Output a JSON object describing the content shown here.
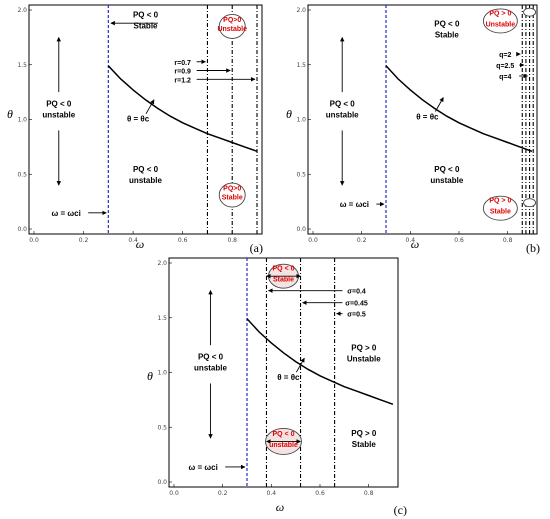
{
  "chart_data": [
    {
      "id": "a",
      "type": "line",
      "panel_label": "(a)",
      "xlabel": "ω",
      "ylabel": "θ",
      "xlim": [
        0,
        0.9
      ],
      "ylim": [
        0,
        2.0
      ],
      "xticks": [
        0.0,
        0.2,
        0.4,
        0.6,
        0.8
      ],
      "yticks": [
        0.0,
        0.5,
        1.0,
        1.5,
        2.0
      ],
      "tick_labels_x": [
        "0.0",
        "0.2",
        "0.4",
        "0.6",
        "0.8"
      ],
      "tick_labels_y": [
        "0.0",
        "0.5",
        "1.0",
        "1.5",
        "2.0"
      ],
      "blue_line_x": 0.3,
      "vlines": [
        0.7,
        0.8,
        0.9
      ],
      "curve": {
        "x": [
          0.3,
          0.35,
          0.4,
          0.45,
          0.5,
          0.55,
          0.6,
          0.65,
          0.7,
          0.75,
          0.8,
          0.85,
          0.9
        ],
        "y": [
          1.49,
          1.37,
          1.27,
          1.18,
          1.1,
          1.03,
          0.97,
          0.92,
          0.87,
          0.83,
          0.79,
          0.75,
          0.71
        ]
      },
      "labels": [
        {
          "text": "PQ < 0",
          "x": 0.45,
          "y": 1.93,
          "kind": "bold"
        },
        {
          "text": "Stable",
          "x": 0.45,
          "y": 1.83,
          "kind": "bold"
        },
        {
          "text": "PQ < 0",
          "x": 0.1,
          "y": 1.12,
          "kind": "bold"
        },
        {
          "text": "unstable",
          "x": 0.1,
          "y": 1.02,
          "kind": "bold"
        },
        {
          "text": "PQ < 0",
          "x": 0.45,
          "y": 0.52,
          "kind": "bold"
        },
        {
          "text": "unstable",
          "x": 0.45,
          "y": 0.42,
          "kind": "bold"
        },
        {
          "text": "θ = θc",
          "x": 0.42,
          "y": 0.98,
          "kind": "bold"
        },
        {
          "text": "ω = ωci",
          "x": 0.13,
          "y": 0.12,
          "kind": "bold"
        },
        {
          "text": "r=0.7",
          "x": 0.6,
          "y": 1.5,
          "kind": "bold"
        },
        {
          "text": "r=0.9",
          "x": 0.6,
          "y": 1.42,
          "kind": "bold"
        },
        {
          "text": "r=1.2",
          "x": 0.6,
          "y": 1.34,
          "kind": "bold"
        },
        {
          "text": "PQ>0",
          "x": 0.8,
          "y": 1.89,
          "kind": "red"
        },
        {
          "text": "Unstable",
          "x": 0.8,
          "y": 1.81,
          "kind": "red"
        },
        {
          "text": "PQ>0",
          "x": 0.8,
          "y": 0.35,
          "kind": "red"
        },
        {
          "text": "Stable",
          "x": 0.8,
          "y": 0.27,
          "kind": "red"
        }
      ]
    },
    {
      "id": "b",
      "type": "line",
      "panel_label": "(b)",
      "xlabel": "ω",
      "ylabel": "θ",
      "xlim": [
        0,
        0.9
      ],
      "ylim": [
        0,
        2.0
      ],
      "xticks": [
        0.0,
        0.2,
        0.4,
        0.6,
        0.8
      ],
      "yticks": [
        0.0,
        0.5,
        1.0,
        1.5,
        2.0
      ],
      "tick_labels_x": [
        "0.0",
        "0.2",
        "0.4",
        "0.6",
        "0.8"
      ],
      "tick_labels_y": [
        "0.0",
        "0.5",
        "1.0",
        "1.5",
        "2.0"
      ],
      "blue_line_x": 0.3,
      "vlines": [
        0.86,
        0.875,
        0.89,
        0.905
      ],
      "curve": {
        "x": [
          0.3,
          0.35,
          0.4,
          0.45,
          0.5,
          0.55,
          0.6,
          0.65,
          0.7,
          0.75,
          0.8,
          0.85,
          0.9
        ],
        "y": [
          1.49,
          1.37,
          1.27,
          1.18,
          1.1,
          1.03,
          0.97,
          0.92,
          0.87,
          0.83,
          0.79,
          0.75,
          0.71
        ]
      },
      "labels": [
        {
          "text": "PQ < 0",
          "x": 0.55,
          "y": 1.85,
          "kind": "bold"
        },
        {
          "text": "Stable",
          "x": 0.55,
          "y": 1.75,
          "kind": "bold"
        },
        {
          "text": "PQ < 0",
          "x": 0.12,
          "y": 1.12,
          "kind": "bold"
        },
        {
          "text": "unstable",
          "x": 0.12,
          "y": 1.02,
          "kind": "bold"
        },
        {
          "text": "PQ < 0",
          "x": 0.55,
          "y": 0.52,
          "kind": "bold"
        },
        {
          "text": "unstable",
          "x": 0.55,
          "y": 0.42,
          "kind": "bold"
        },
        {
          "text": "θ = θc",
          "x": 0.47,
          "y": 1.0,
          "kind": "bold"
        },
        {
          "text": "ω = ωci",
          "x": 0.17,
          "y": 0.2,
          "kind": "bold"
        },
        {
          "text": "q=2",
          "x": 0.79,
          "y": 1.57,
          "kind": "bold"
        },
        {
          "text": "q=2.5",
          "x": 0.79,
          "y": 1.47,
          "kind": "bold"
        },
        {
          "text": "q=4",
          "x": 0.79,
          "y": 1.37,
          "kind": "bold"
        },
        {
          "text": "PQ > 0",
          "x": 0.77,
          "y": 1.95,
          "kind": "red"
        },
        {
          "text": "Unstable",
          "x": 0.77,
          "y": 1.85,
          "kind": "red"
        },
        {
          "text": "PQ > 0",
          "x": 0.77,
          "y": 0.24,
          "kind": "red"
        },
        {
          "text": "Stable",
          "x": 0.77,
          "y": 0.14,
          "kind": "red"
        }
      ]
    },
    {
      "id": "c",
      "type": "line",
      "panel_label": "(c)",
      "xlabel": "ω",
      "ylabel": "θ",
      "xlim": [
        0,
        0.9
      ],
      "ylim": [
        0,
        2.0
      ],
      "xticks": [
        0.0,
        0.2,
        0.4,
        0.6,
        0.8
      ],
      "yticks": [
        0.0,
        0.5,
        1.0,
        1.5,
        2.0
      ],
      "tick_labels_x": [
        "0.0",
        "0.2",
        "0.4",
        "0.6",
        "0.8"
      ],
      "tick_labels_y": [
        "0.0",
        "0.5",
        "1.0",
        "1.5",
        "2.0"
      ],
      "blue_line_x": 0.3,
      "vlines": [
        0.38,
        0.52,
        0.66
      ],
      "curve": {
        "x": [
          0.3,
          0.35,
          0.4,
          0.45,
          0.5,
          0.55,
          0.6,
          0.65,
          0.7,
          0.75,
          0.8,
          0.85,
          0.9
        ],
        "y": [
          1.49,
          1.37,
          1.27,
          1.18,
          1.1,
          1.03,
          0.97,
          0.92,
          0.87,
          0.83,
          0.79,
          0.75,
          0.71
        ]
      },
      "labels": [
        {
          "text": "PQ < 0",
          "x": 0.45,
          "y": 1.93,
          "kind": "red-dark"
        },
        {
          "text": "Stable",
          "x": 0.45,
          "y": 1.83,
          "kind": "red-dark"
        },
        {
          "text": "PQ < 0",
          "x": 0.45,
          "y": 0.42,
          "kind": "red-dark"
        },
        {
          "text": "unstable",
          "x": 0.45,
          "y": 0.32,
          "kind": "red-dark"
        },
        {
          "text": "PQ < 0",
          "x": 0.15,
          "y": 1.12,
          "kind": "bold"
        },
        {
          "text": "unstable",
          "x": 0.15,
          "y": 1.02,
          "kind": "bold"
        },
        {
          "text": "PQ > 0",
          "x": 0.78,
          "y": 1.2,
          "kind": "bold"
        },
        {
          "text": "Unstable",
          "x": 0.78,
          "y": 1.1,
          "kind": "bold"
        },
        {
          "text": "PQ > 0",
          "x": 0.78,
          "y": 0.42,
          "kind": "bold"
        },
        {
          "text": "Stable",
          "x": 0.78,
          "y": 0.32,
          "kind": "bold"
        },
        {
          "text": "θ = θc",
          "x": 0.47,
          "y": 0.93,
          "kind": "bold"
        },
        {
          "text": "ω = ωci",
          "x": 0.12,
          "y": 0.11,
          "kind": "bold"
        },
        {
          "text": "σ=0.4",
          "x": 0.75,
          "y": 1.72,
          "kind": "bold"
        },
        {
          "text": "σ=0.45",
          "x": 0.75,
          "y": 1.61,
          "kind": "bold"
        },
        {
          "text": "σ=0.5",
          "x": 0.75,
          "y": 1.51,
          "kind": "bold"
        }
      ]
    }
  ],
  "colors": {
    "blue_line": "#2a2acf",
    "red_text": "#e00000",
    "dark_red_text": "#b00000",
    "ellipse_fill": "#f3e3e3"
  }
}
